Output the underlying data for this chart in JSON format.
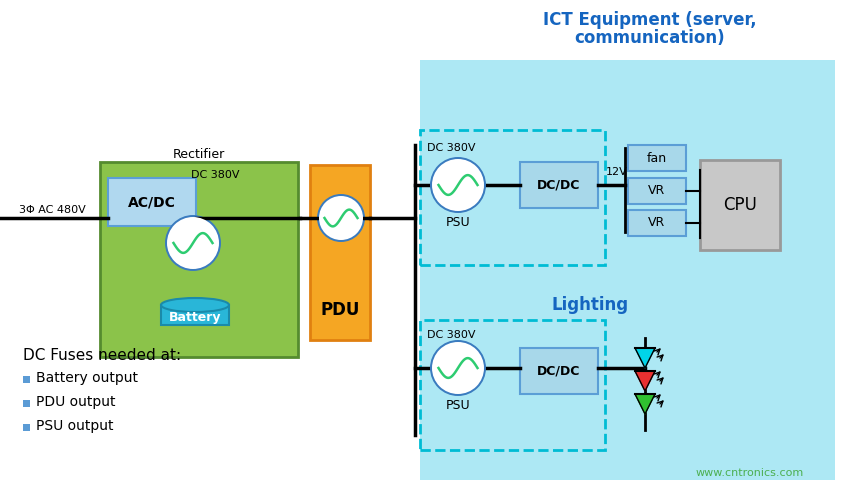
{
  "title_line1": "ICT Equipment (server,",
  "title_line2": "communication)",
  "title2": "Lighting",
  "bg_color": "#ffffff",
  "cyan_bg": "#ade8f4",
  "green_box": "#8bc34a",
  "green_border": "#558b2f",
  "orange_bg": "#f5a623",
  "orange_border": "#e08010",
  "blue_box": "#a8d8ea",
  "blue_border": "#5b9ed6",
  "blue_circle": "#3a7bbf",
  "gray_box": "#c8c8c8",
  "gray_border": "#999999",
  "dashed_border": "#00bcd4",
  "text_title_color": "#1565c0",
  "bullet_color": "#5b9bd5",
  "watermark": "www.cntronics.com",
  "watermark_color": "#4caf50",
  "note_title": "DC Fuses needed at:",
  "bullets": [
    "Battery output",
    "PDU output",
    "PSU output"
  ],
  "label_rectifier": "Rectifier",
  "label_acdc": "AC/DC",
  "label_battery": "Battery",
  "label_pdu": "PDU",
  "label_dcdc": "DC/DC",
  "label_psu": "PSU",
  "label_fan": "fan",
  "label_vr": "VR",
  "label_cpu": "CPU",
  "label_3phase": "3Φ AC 480V",
  "label_dc380v": "DC 380V",
  "label_12v": "12V",
  "battery_color": "#29b6d8",
  "battery_dark": "#1a8aaa"
}
